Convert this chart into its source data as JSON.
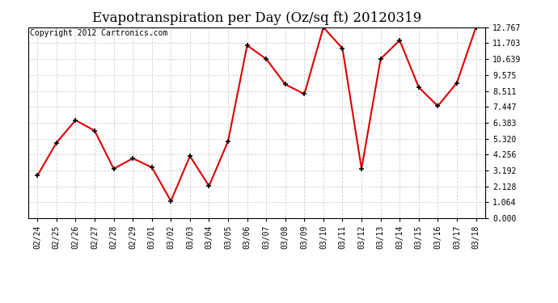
{
  "title": "Evapotranspiration per Day (Oz/sq ft) 20120319",
  "copyright": "Copyright 2012 Cartronics.com",
  "dates": [
    "02/24",
    "02/25",
    "02/26",
    "02/27",
    "02/28",
    "02/29",
    "03/01",
    "03/02",
    "03/03",
    "03/04",
    "03/05",
    "03/06",
    "03/07",
    "03/08",
    "03/09",
    "03/10",
    "03/11",
    "03/12",
    "03/13",
    "03/14",
    "03/15",
    "03/16",
    "03/17",
    "03/18"
  ],
  "values": [
    2.85,
    5.05,
    6.55,
    5.85,
    3.3,
    4.0,
    3.4,
    1.15,
    4.15,
    2.15,
    5.15,
    11.55,
    10.65,
    8.95,
    8.3,
    12.767,
    11.35,
    3.3,
    10.65,
    11.9,
    8.75,
    7.5,
    9.05,
    12.767
  ],
  "line_color": "#dd0000",
  "marker_color": "#000000",
  "bg_color": "#ffffff",
  "grid_color": "#cccccc",
  "yticks": [
    0.0,
    1.064,
    2.128,
    3.192,
    4.256,
    5.32,
    6.383,
    7.447,
    8.511,
    9.575,
    10.639,
    11.703,
    12.767
  ],
  "ylim": [
    0.0,
    12.767
  ],
  "title_fontsize": 12,
  "copyright_fontsize": 7,
  "tick_fontsize": 7,
  "figwidth": 6.9,
  "figheight": 3.75,
  "dpi": 100
}
